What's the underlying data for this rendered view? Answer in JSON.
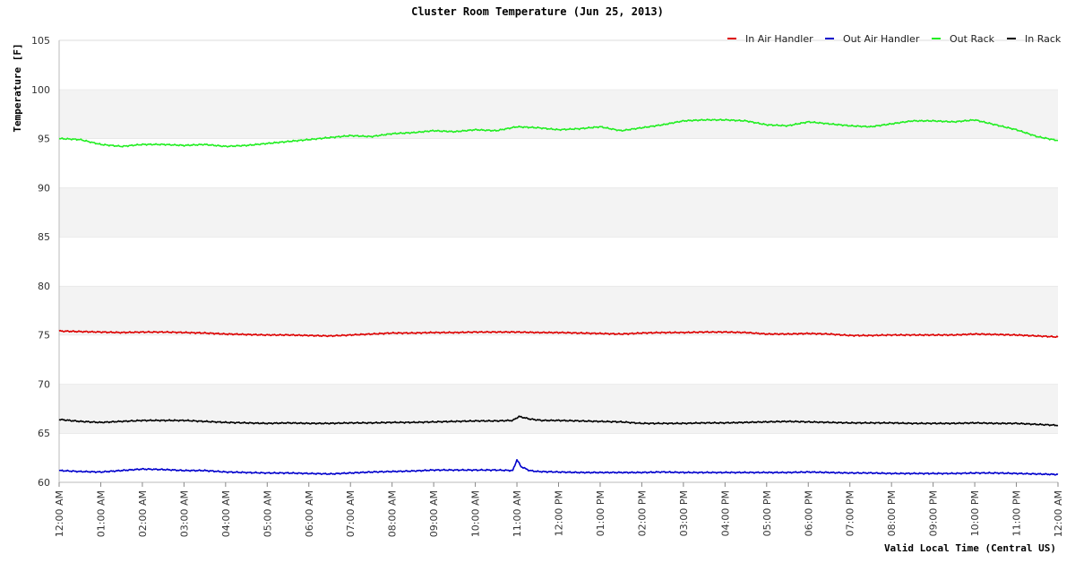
{
  "chart_data": {
    "type": "line",
    "title": "Cluster Room Temperature (Jun 25, 2013)",
    "xlabel": "Valid Local Time (Central US)",
    "ylabel": "Temperature [F]",
    "ylim": [
      60,
      105
    ],
    "yticks": [
      60,
      65,
      70,
      75,
      80,
      85,
      90,
      95,
      100,
      105
    ],
    "xlim": [
      0,
      24
    ],
    "xtick_labels": [
      "12:00 AM",
      "01:00 AM",
      "02:00 AM",
      "03:00 AM",
      "04:00 AM",
      "05:00 AM",
      "06:00 AM",
      "07:00 AM",
      "08:00 AM",
      "09:00 AM",
      "10:00 AM",
      "11:00 AM",
      "12:00 PM",
      "01:00 PM",
      "02:00 PM",
      "03:00 PM",
      "04:00 PM",
      "05:00 PM",
      "06:00 PM",
      "07:00 PM",
      "08:00 PM",
      "09:00 PM",
      "10:00 PM",
      "11:00 PM",
      "12:00 AM"
    ],
    "legend_position": "top-right",
    "grid": "alternating horizontal bands",
    "series": [
      {
        "name": "In Air Handler",
        "color": "#dd0000",
        "x": [
          0,
          0.5,
          1,
          1.5,
          2,
          2.5,
          3,
          3.5,
          4,
          4.5,
          5,
          5.5,
          6,
          6.5,
          7,
          7.5,
          8,
          8.5,
          9,
          9.5,
          10,
          10.5,
          11,
          11.5,
          12,
          12.5,
          13,
          13.5,
          14,
          14.5,
          15,
          15.5,
          16,
          16.5,
          17,
          17.5,
          18,
          18.5,
          19,
          19.5,
          20,
          20.5,
          21,
          21.5,
          22,
          22.5,
          23,
          23.5,
          24
        ],
        "values": [
          75.4,
          75.35,
          75.3,
          75.25,
          75.3,
          75.3,
          75.25,
          75.2,
          75.1,
          75.05,
          75.0,
          75.0,
          74.95,
          74.9,
          75.0,
          75.1,
          75.2,
          75.2,
          75.25,
          75.25,
          75.3,
          75.3,
          75.3,
          75.25,
          75.25,
          75.2,
          75.15,
          75.1,
          75.2,
          75.25,
          75.25,
          75.3,
          75.3,
          75.25,
          75.1,
          75.1,
          75.15,
          75.1,
          74.95,
          74.95,
          75.0,
          75.0,
          75.0,
          75.0,
          75.1,
          75.05,
          75.0,
          74.9,
          74.8
        ]
      },
      {
        "name": "Out Air Handler",
        "color": "#0000cc",
        "x": [
          0,
          0.5,
          1,
          1.5,
          2,
          2.5,
          3,
          3.5,
          4,
          4.5,
          5,
          5.5,
          6,
          6.5,
          7,
          7.5,
          8,
          8.5,
          9,
          9.5,
          10,
          10.5,
          10.9,
          11.0,
          11.1,
          11.3,
          11.5,
          12,
          12.5,
          13,
          13.5,
          14,
          14.5,
          15,
          15.5,
          16,
          16.5,
          17,
          17.5,
          18,
          18.5,
          19,
          19.5,
          20,
          20.5,
          21,
          21.5,
          22,
          22.5,
          23,
          23.5,
          24
        ],
        "values": [
          61.2,
          61.1,
          61.05,
          61.2,
          61.35,
          61.3,
          61.2,
          61.2,
          61.05,
          61.0,
          60.95,
          60.95,
          60.9,
          60.85,
          60.95,
          61.05,
          61.1,
          61.15,
          61.25,
          61.25,
          61.25,
          61.25,
          61.2,
          62.3,
          61.6,
          61.2,
          61.1,
          61.05,
          61.0,
          61.0,
          61.0,
          61.0,
          61.05,
          61.0,
          61.0,
          61.0,
          61.0,
          61.0,
          61.0,
          61.05,
          61.0,
          60.95,
          60.95,
          60.9,
          60.9,
          60.9,
          60.9,
          60.95,
          60.95,
          60.9,
          60.85,
          60.8
        ]
      },
      {
        "name": "Out Rack",
        "color": "#22ee22",
        "x": [
          0,
          0.5,
          1,
          1.5,
          2,
          2.5,
          3,
          3.5,
          4,
          4.5,
          5,
          5.5,
          6,
          6.5,
          7,
          7.5,
          8,
          8.5,
          9,
          9.5,
          10,
          10.5,
          11,
          11.5,
          12,
          12.5,
          13,
          13.5,
          14,
          14.5,
          15,
          15.5,
          16,
          16.5,
          17,
          17.5,
          18,
          18.5,
          19,
          19.5,
          20,
          20.5,
          21,
          21.5,
          22,
          22.5,
          23,
          23.5,
          24
        ],
        "values": [
          95.0,
          94.9,
          94.4,
          94.2,
          94.4,
          94.4,
          94.3,
          94.4,
          94.2,
          94.3,
          94.5,
          94.7,
          94.9,
          95.1,
          95.3,
          95.2,
          95.5,
          95.6,
          95.8,
          95.7,
          95.9,
          95.8,
          96.2,
          96.1,
          95.9,
          96.0,
          96.2,
          95.8,
          96.1,
          96.4,
          96.8,
          96.9,
          96.9,
          96.8,
          96.4,
          96.3,
          96.7,
          96.5,
          96.3,
          96.2,
          96.5,
          96.8,
          96.8,
          96.7,
          96.9,
          96.4,
          95.9,
          95.2,
          94.8
        ]
      },
      {
        "name": "In Rack",
        "color": "#000000",
        "x": [
          0,
          0.5,
          1,
          1.5,
          2,
          2.5,
          3,
          3.5,
          4,
          4.5,
          5,
          5.5,
          6,
          6.5,
          7,
          7.5,
          8,
          8.5,
          9,
          9.5,
          10,
          10.5,
          10.9,
          11.05,
          11.3,
          11.6,
          12,
          12.5,
          13,
          13.5,
          14,
          14.5,
          15,
          15.5,
          16,
          16.5,
          17,
          17.5,
          18,
          18.5,
          19,
          19.5,
          20,
          20.5,
          21,
          21.5,
          22,
          22.5,
          23,
          23.5,
          24
        ],
        "values": [
          66.4,
          66.2,
          66.1,
          66.2,
          66.3,
          66.3,
          66.3,
          66.2,
          66.1,
          66.05,
          66.0,
          66.05,
          66.0,
          66.0,
          66.05,
          66.05,
          66.1,
          66.1,
          66.15,
          66.2,
          66.25,
          66.25,
          66.3,
          66.7,
          66.45,
          66.3,
          66.3,
          66.25,
          66.2,
          66.15,
          66.0,
          66.0,
          66.0,
          66.05,
          66.05,
          66.1,
          66.15,
          66.2,
          66.15,
          66.1,
          66.05,
          66.05,
          66.05,
          66.0,
          66.0,
          66.0,
          66.05,
          66.0,
          66.0,
          65.9,
          65.8
        ]
      }
    ]
  }
}
